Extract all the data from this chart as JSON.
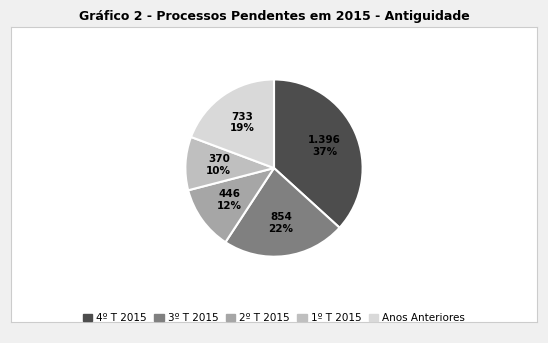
{
  "title": "Gráfico 2 - Processos Pendentes em 2015 - Antiguidade",
  "slices": [
    1396,
    854,
    446,
    370,
    733
  ],
  "labels": [
    "4º T 2015",
    "3º T 2015",
    "2º T 2015",
    "1º T 2015",
    "Anos Anteriores"
  ],
  "counts": [
    "1.396",
    "854",
    "446",
    "370",
    "733"
  ],
  "percentages": [
    "37%",
    "22%",
    "12%",
    "10%",
    "19%"
  ],
  "colors": [
    "#4d4d4d",
    "#808080",
    "#a6a6a6",
    "#bfbfbf",
    "#d9d9d9"
  ],
  "startangle": 90,
  "title_fontsize": 9,
  "label_fontsize": 7.5,
  "legend_fontsize": 7.5
}
